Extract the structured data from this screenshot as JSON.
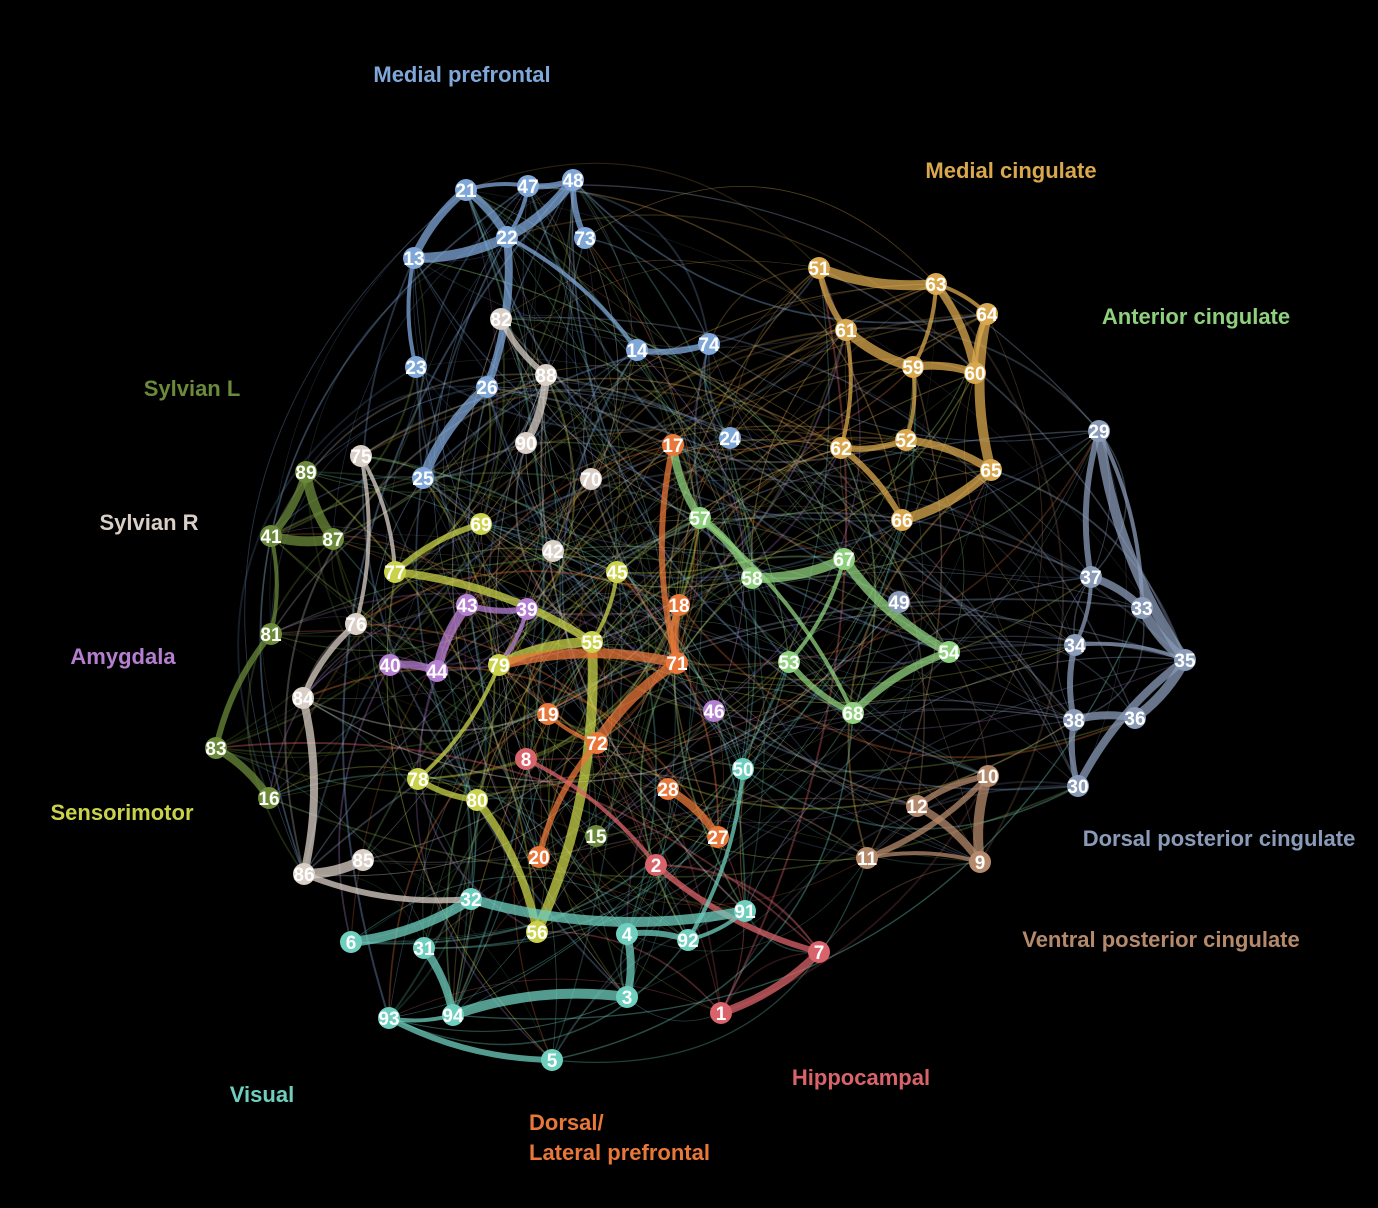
{
  "groups": [
    {
      "key": "mpfc",
      "name": "Medial prefrontal",
      "color": "#7fa7d8"
    },
    {
      "key": "mcing",
      "name": "Medial cingulate",
      "color": "#d9a84e"
    },
    {
      "key": "acing",
      "name": "Anterior cingulate",
      "color": "#8fd07e"
    },
    {
      "key": "sylL",
      "name": "Sylvian L",
      "color": "#6b8a3a"
    },
    {
      "key": "sylR",
      "name": "Sylvian R",
      "color": "#d9cfc6"
    },
    {
      "key": "amyg",
      "name": "Amygdala",
      "color": "#b57fd1"
    },
    {
      "key": "sens",
      "name": "Sensorimotor",
      "color": "#c9d24a"
    },
    {
      "key": "dpc",
      "name": "Dorsal posterior cingulate",
      "color": "#8a9bb8"
    },
    {
      "key": "vpc",
      "name": "Ventral posterior cingulate",
      "color": "#b58a6c"
    },
    {
      "key": "visual",
      "name": "Visual",
      "color": "#6fcfbf"
    },
    {
      "key": "hipp",
      "name": "Hippocampal",
      "color": "#d9636a"
    },
    {
      "key": "dlpfc",
      "name": "Dorsal/\nLateral prefrontal",
      "color": "#e8773a"
    }
  ],
  "nodes": [
    {
      "id": "21",
      "group": "mpfc"
    },
    {
      "id": "47",
      "group": "mpfc"
    },
    {
      "id": "48",
      "group": "mpfc"
    },
    {
      "id": "22",
      "group": "mpfc"
    },
    {
      "id": "73",
      "group": "mpfc"
    },
    {
      "id": "13",
      "group": "mpfc"
    },
    {
      "id": "82",
      "group": "sylR"
    },
    {
      "id": "14",
      "group": "mpfc"
    },
    {
      "id": "74",
      "group": "mpfc"
    },
    {
      "id": "23",
      "group": "mpfc"
    },
    {
      "id": "26",
      "group": "mpfc"
    },
    {
      "id": "88",
      "group": "sylR"
    },
    {
      "id": "25",
      "group": "mpfc"
    },
    {
      "id": "24",
      "group": "mpfc"
    },
    {
      "id": "90",
      "group": "sylR"
    },
    {
      "id": "51",
      "group": "mcing"
    },
    {
      "id": "63",
      "group": "mcing"
    },
    {
      "id": "64",
      "group": "mcing"
    },
    {
      "id": "61",
      "group": "mcing"
    },
    {
      "id": "59",
      "group": "mcing"
    },
    {
      "id": "60",
      "group": "mcing"
    },
    {
      "id": "62",
      "group": "mcing"
    },
    {
      "id": "52",
      "group": "mcing"
    },
    {
      "id": "65",
      "group": "mcing"
    },
    {
      "id": "66",
      "group": "mcing"
    },
    {
      "id": "57",
      "group": "acing"
    },
    {
      "id": "58",
      "group": "acing"
    },
    {
      "id": "67",
      "group": "acing"
    },
    {
      "id": "53",
      "group": "acing"
    },
    {
      "id": "54",
      "group": "acing"
    },
    {
      "id": "68",
      "group": "acing"
    },
    {
      "id": "49",
      "group": "dpc"
    },
    {
      "id": "29",
      "group": "dpc"
    },
    {
      "id": "37",
      "group": "dpc"
    },
    {
      "id": "33",
      "group": "dpc"
    },
    {
      "id": "34",
      "group": "dpc"
    },
    {
      "id": "35",
      "group": "dpc"
    },
    {
      "id": "38",
      "group": "dpc"
    },
    {
      "id": "36",
      "group": "dpc"
    },
    {
      "id": "30",
      "group": "dpc"
    },
    {
      "id": "10",
      "group": "vpc"
    },
    {
      "id": "12",
      "group": "vpc"
    },
    {
      "id": "11",
      "group": "vpc"
    },
    {
      "id": "9",
      "group": "vpc"
    },
    {
      "id": "89",
      "group": "sylL"
    },
    {
      "id": "41",
      "group": "sylL"
    },
    {
      "id": "87",
      "group": "sylL"
    },
    {
      "id": "81",
      "group": "sylL"
    },
    {
      "id": "83",
      "group": "sylL"
    },
    {
      "id": "16",
      "group": "sylL"
    },
    {
      "id": "15",
      "group": "sylL"
    },
    {
      "id": "75",
      "group": "sylR"
    },
    {
      "id": "76",
      "group": "sylR"
    },
    {
      "id": "84",
      "group": "sylR"
    },
    {
      "id": "86",
      "group": "sylR"
    },
    {
      "id": "85",
      "group": "sylR"
    },
    {
      "id": "70",
      "group": "sylR"
    },
    {
      "id": "42",
      "group": "sylR"
    },
    {
      "id": "43",
      "group": "amyg"
    },
    {
      "id": "39",
      "group": "amyg"
    },
    {
      "id": "40",
      "group": "amyg"
    },
    {
      "id": "44",
      "group": "amyg"
    },
    {
      "id": "46",
      "group": "amyg"
    },
    {
      "id": "69",
      "group": "sens"
    },
    {
      "id": "77",
      "group": "sens"
    },
    {
      "id": "45",
      "group": "sens"
    },
    {
      "id": "55",
      "group": "sens"
    },
    {
      "id": "79",
      "group": "sens"
    },
    {
      "id": "78",
      "group": "sens"
    },
    {
      "id": "80",
      "group": "sens"
    },
    {
      "id": "56",
      "group": "sens"
    },
    {
      "id": "17",
      "group": "dlpfc"
    },
    {
      "id": "18",
      "group": "dlpfc"
    },
    {
      "id": "71",
      "group": "dlpfc"
    },
    {
      "id": "19",
      "group": "dlpfc"
    },
    {
      "id": "72",
      "group": "dlpfc"
    },
    {
      "id": "28",
      "group": "dlpfc"
    },
    {
      "id": "27",
      "group": "dlpfc"
    },
    {
      "id": "20",
      "group": "dlpfc"
    },
    {
      "id": "8",
      "group": "hipp"
    },
    {
      "id": "2",
      "group": "hipp"
    },
    {
      "id": "7",
      "group": "hipp"
    },
    {
      "id": "1",
      "group": "hipp"
    },
    {
      "id": "50",
      "group": "visual"
    },
    {
      "id": "32",
      "group": "visual"
    },
    {
      "id": "91",
      "group": "visual"
    },
    {
      "id": "4",
      "group": "visual"
    },
    {
      "id": "92",
      "group": "visual"
    },
    {
      "id": "6",
      "group": "visual"
    },
    {
      "id": "31",
      "group": "visual"
    },
    {
      "id": "3",
      "group": "visual"
    },
    {
      "id": "93",
      "group": "visual"
    },
    {
      "id": "94",
      "group": "visual"
    },
    {
      "id": "5",
      "group": "visual"
    }
  ],
  "strong_links": [
    [
      "21",
      "47"
    ],
    [
      "47",
      "48"
    ],
    [
      "21",
      "22"
    ],
    [
      "22",
      "48"
    ],
    [
      "47",
      "22"
    ],
    [
      "48",
      "73"
    ],
    [
      "13",
      "21"
    ],
    [
      "13",
      "22"
    ],
    [
      "22",
      "14"
    ],
    [
      "14",
      "74"
    ],
    [
      "22",
      "26"
    ],
    [
      "26",
      "25"
    ],
    [
      "23",
      "13"
    ],
    [
      "82",
      "88"
    ],
    [
      "88",
      "90"
    ],
    [
      "51",
      "63"
    ],
    [
      "63",
      "64"
    ],
    [
      "64",
      "60"
    ],
    [
      "59",
      "60"
    ],
    [
      "61",
      "59"
    ],
    [
      "63",
      "59"
    ],
    [
      "62",
      "52"
    ],
    [
      "52",
      "65"
    ],
    [
      "66",
      "65"
    ],
    [
      "59",
      "52"
    ],
    [
      "51",
      "61"
    ],
    [
      "63",
      "60"
    ],
    [
      "64",
      "65"
    ],
    [
      "61",
      "62"
    ],
    [
      "66",
      "62"
    ],
    [
      "57",
      "58"
    ],
    [
      "58",
      "67"
    ],
    [
      "67",
      "53"
    ],
    [
      "53",
      "68"
    ],
    [
      "68",
      "54"
    ],
    [
      "67",
      "54"
    ],
    [
      "57",
      "68"
    ],
    [
      "29",
      "37"
    ],
    [
      "37",
      "33"
    ],
    [
      "33",
      "35"
    ],
    [
      "34",
      "35"
    ],
    [
      "34",
      "38"
    ],
    [
      "38",
      "36"
    ],
    [
      "36",
      "35"
    ],
    [
      "37",
      "34"
    ],
    [
      "38",
      "30"
    ],
    [
      "30",
      "35"
    ],
    [
      "29",
      "35"
    ],
    [
      "29",
      "33"
    ],
    [
      "10",
      "12"
    ],
    [
      "12",
      "9"
    ],
    [
      "10",
      "9"
    ],
    [
      "11",
      "9"
    ],
    [
      "11",
      "10"
    ],
    [
      "89",
      "41"
    ],
    [
      "41",
      "87"
    ],
    [
      "41",
      "81"
    ],
    [
      "81",
      "83"
    ],
    [
      "83",
      "16"
    ],
    [
      "89",
      "87"
    ],
    [
      "75",
      "76"
    ],
    [
      "76",
      "84"
    ],
    [
      "84",
      "86"
    ],
    [
      "86",
      "85"
    ],
    [
      "75",
      "77"
    ],
    [
      "43",
      "39"
    ],
    [
      "40",
      "44"
    ],
    [
      "43",
      "44"
    ],
    [
      "39",
      "79"
    ],
    [
      "69",
      "77"
    ],
    [
      "77",
      "55"
    ],
    [
      "55",
      "79"
    ],
    [
      "79",
      "78"
    ],
    [
      "78",
      "80"
    ],
    [
      "80",
      "56"
    ],
    [
      "56",
      "55"
    ],
    [
      "45",
      "55"
    ],
    [
      "17",
      "71"
    ],
    [
      "71",
      "18"
    ],
    [
      "71",
      "72"
    ],
    [
      "72",
      "19"
    ],
    [
      "72",
      "20"
    ],
    [
      "28",
      "27"
    ],
    [
      "71",
      "79"
    ],
    [
      "8",
      "2"
    ],
    [
      "2",
      "7"
    ],
    [
      "7",
      "1"
    ],
    [
      "32",
      "91"
    ],
    [
      "91",
      "92"
    ],
    [
      "92",
      "4"
    ],
    [
      "4",
      "3"
    ],
    [
      "3",
      "94"
    ],
    [
      "94",
      "93"
    ],
    [
      "93",
      "5"
    ],
    [
      "31",
      "94"
    ],
    [
      "6",
      "32"
    ],
    [
      "50",
      "92"
    ],
    [
      "86",
      "32"
    ],
    [
      "57",
      "17"
    ]
  ]
}
